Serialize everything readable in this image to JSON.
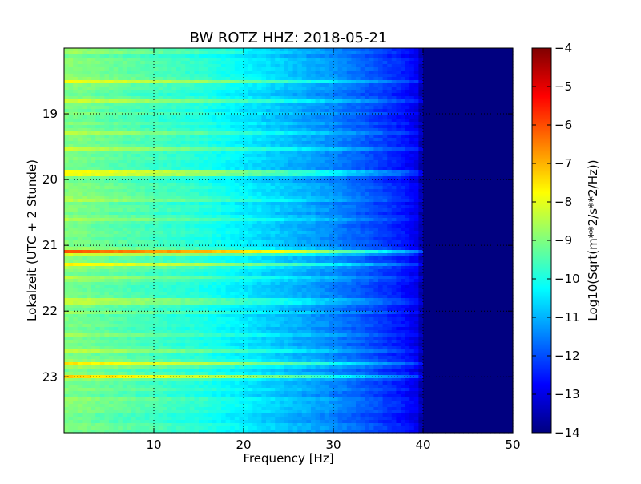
{
  "chart_data": {
    "type": "heatmap",
    "title": "BW ROTZ HHZ: 2018-05-21",
    "xlabel": "Frequency [Hz]",
    "ylabel": "Lokalzeit (UTC + 2 Stunde)",
    "xlim": [
      0,
      50
    ],
    "ylim": [
      18.0,
      23.85
    ],
    "x_ticks": [
      10,
      20,
      30,
      40,
      50
    ],
    "y_ticks": [
      19,
      20,
      21,
      22,
      23
    ],
    "y_inverted": true,
    "grid": true,
    "colormap": "jet",
    "colorbar": {
      "label": "Log10(Sqrt(m**2/s**2/Hz))",
      "range": [
        -14,
        -4
      ],
      "ticks": [
        -4,
        -5,
        -6,
        -7,
        -8,
        -9,
        -10,
        -11,
        -12,
        -13,
        -14
      ]
    },
    "background_level_by_frequency": {
      "frequency_hz": [
        0,
        2,
        5,
        10,
        15,
        20,
        25,
        30,
        35,
        38,
        39.5,
        40,
        50
      ],
      "level": [
        -9.0,
        -9.1,
        -9.3,
        -9.6,
        -9.9,
        -10.4,
        -10.9,
        -11.4,
        -12.1,
        -12.6,
        -13.0,
        -14.0,
        -14.0
      ]
    },
    "bands": [
      {
        "time": 18.05,
        "width": 0.04,
        "boost": 0.5,
        "fmax": 20
      },
      {
        "time": 18.5,
        "width": 0.05,
        "boost": 1.4,
        "fmax": 42
      },
      {
        "time": 18.8,
        "width": 0.03,
        "boost": 0.8,
        "fmax": 41
      },
      {
        "time": 19.3,
        "width": 0.03,
        "boost": 0.7,
        "fmax": 40
      },
      {
        "time": 19.55,
        "width": 0.04,
        "boost": 0.9,
        "fmax": 40
      },
      {
        "time": 19.9,
        "width": 0.06,
        "boost": 2.0,
        "fmax": 42
      },
      {
        "time": 20.3,
        "width": 0.04,
        "boost": 1.0,
        "fmax": 40
      },
      {
        "time": 20.6,
        "width": 0.03,
        "boost": 0.6,
        "fmax": 40
      },
      {
        "time": 21.1,
        "width": 0.06,
        "boost": 3.2,
        "fmax": 50
      },
      {
        "time": 21.3,
        "width": 0.05,
        "boost": 1.8,
        "fmax": 43
      },
      {
        "time": 21.5,
        "width": 0.04,
        "boost": 0.8,
        "fmax": 41
      },
      {
        "time": 21.85,
        "width": 0.05,
        "boost": 1.4,
        "fmax": 41
      },
      {
        "time": 22.0,
        "width": 0.03,
        "boost": 0.7,
        "fmax": 40
      },
      {
        "time": 22.35,
        "width": 0.03,
        "boost": 0.7,
        "fmax": 40
      },
      {
        "time": 22.6,
        "width": 0.04,
        "boost": 0.9,
        "fmax": 41
      },
      {
        "time": 22.8,
        "width": 0.06,
        "boost": 1.6,
        "fmax": 42
      },
      {
        "time": 23.0,
        "width": 0.05,
        "boost": 1.8,
        "fmax": 42
      },
      {
        "time": 23.35,
        "width": 0.03,
        "boost": 0.7,
        "fmax": 40
      }
    ]
  }
}
